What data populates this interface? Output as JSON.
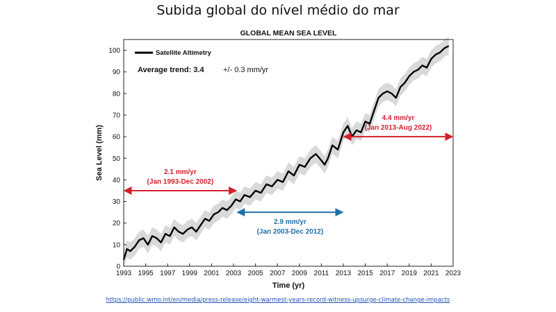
{
  "slide": {
    "title": "Subida global do nível médio do mar",
    "source": "https://public.wmo.int/en/media/press-release/eight-warmest-years-record-witness-upsurge-climate-change-impacts"
  },
  "chart_data": {
    "type": "line",
    "title": "GLOBAL MEAN SEA LEVEL",
    "xlabel": "Time (yr)",
    "ylabel": "Sea Level (mm)",
    "xlim": [
      1993,
      2023
    ],
    "ylim": [
      0,
      105
    ],
    "x_ticks": [
      1993,
      1995,
      1997,
      1999,
      2001,
      2003,
      2005,
      2007,
      2009,
      2011,
      2013,
      2015,
      2017,
      2019,
      2021,
      2023
    ],
    "y_ticks": [
      0,
      10,
      20,
      30,
      40,
      50,
      60,
      70,
      80,
      90,
      100
    ],
    "grid": false,
    "legend": {
      "position": "top-left",
      "entries": [
        "Satellite Altimetry"
      ]
    },
    "series": [
      {
        "name": "Satellite Altimetry",
        "color": "#000000",
        "uncertainty_band_color": "#d9d9d9",
        "x": [
          1993.0,
          1993.3,
          1993.6,
          1994.0,
          1994.4,
          1994.8,
          1995.2,
          1995.6,
          1996.0,
          1996.4,
          1996.8,
          1997.2,
          1997.6,
          1998.0,
          1998.4,
          1998.8,
          1999.2,
          1999.6,
          2000.0,
          2000.4,
          2000.8,
          2001.2,
          2001.6,
          2002.0,
          2002.4,
          2002.8,
          2003.2,
          2003.6,
          2004.0,
          2004.5,
          2005.0,
          2005.5,
          2006.0,
          2006.5,
          2007.0,
          2007.5,
          2008.0,
          2008.5,
          2009.0,
          2009.5,
          2010.0,
          2010.5,
          2011.0,
          2011.3,
          2011.6,
          2012.0,
          2012.5,
          2013.0,
          2013.4,
          2013.8,
          2014.2,
          2014.6,
          2015.0,
          2015.4,
          2015.8,
          2016.2,
          2016.6,
          2017.0,
          2017.4,
          2017.8,
          2018.2,
          2018.6,
          2019.0,
          2019.4,
          2019.8,
          2020.2,
          2020.6,
          2021.0,
          2021.4,
          2021.8,
          2022.2,
          2022.6
        ],
        "y": [
          3,
          8,
          7,
          9,
          12,
          13,
          10,
          14,
          13,
          11,
          15,
          14,
          18,
          16,
          15,
          17,
          18,
          16,
          19,
          22,
          21,
          24,
          25,
          27,
          26,
          28,
          31,
          30,
          33,
          32,
          35,
          34,
          38,
          37,
          40,
          39,
          44,
          42,
          47,
          46,
          50,
          52,
          49,
          47,
          50,
          56,
          54,
          62,
          65,
          60,
          63,
          62,
          67,
          66,
          72,
          78,
          80,
          81,
          80,
          78,
          83,
          85,
          88,
          90,
          91,
          93,
          92,
          96,
          98,
          99,
          101,
          102
        ],
        "uncertainty_mm": 4
      }
    ],
    "annotations": [
      {
        "label": "Average trend: 3.4",
        "note": "+/- 0.3 mm/yr",
        "position": "top-left"
      },
      {
        "rate": "2.1 mm/yr",
        "period": "(Jan 1993-Dec 2002)",
        "color": "#d4202c",
        "x_range": [
          1993,
          2003.3
        ],
        "y": 35
      },
      {
        "rate": "2.9 mm/yr",
        "period": "(Jan 2003-Dec 2012)",
        "color": "#1f6fa8",
        "x_range": [
          2003.3,
          2013.0
        ],
        "y": 25
      },
      {
        "rate": "4.4 mm/yr",
        "period": "(Jan 2013-Aug 2022)",
        "color": "#d4202c",
        "x_range": [
          2013.0,
          2023
        ],
        "y": 60
      }
    ]
  }
}
